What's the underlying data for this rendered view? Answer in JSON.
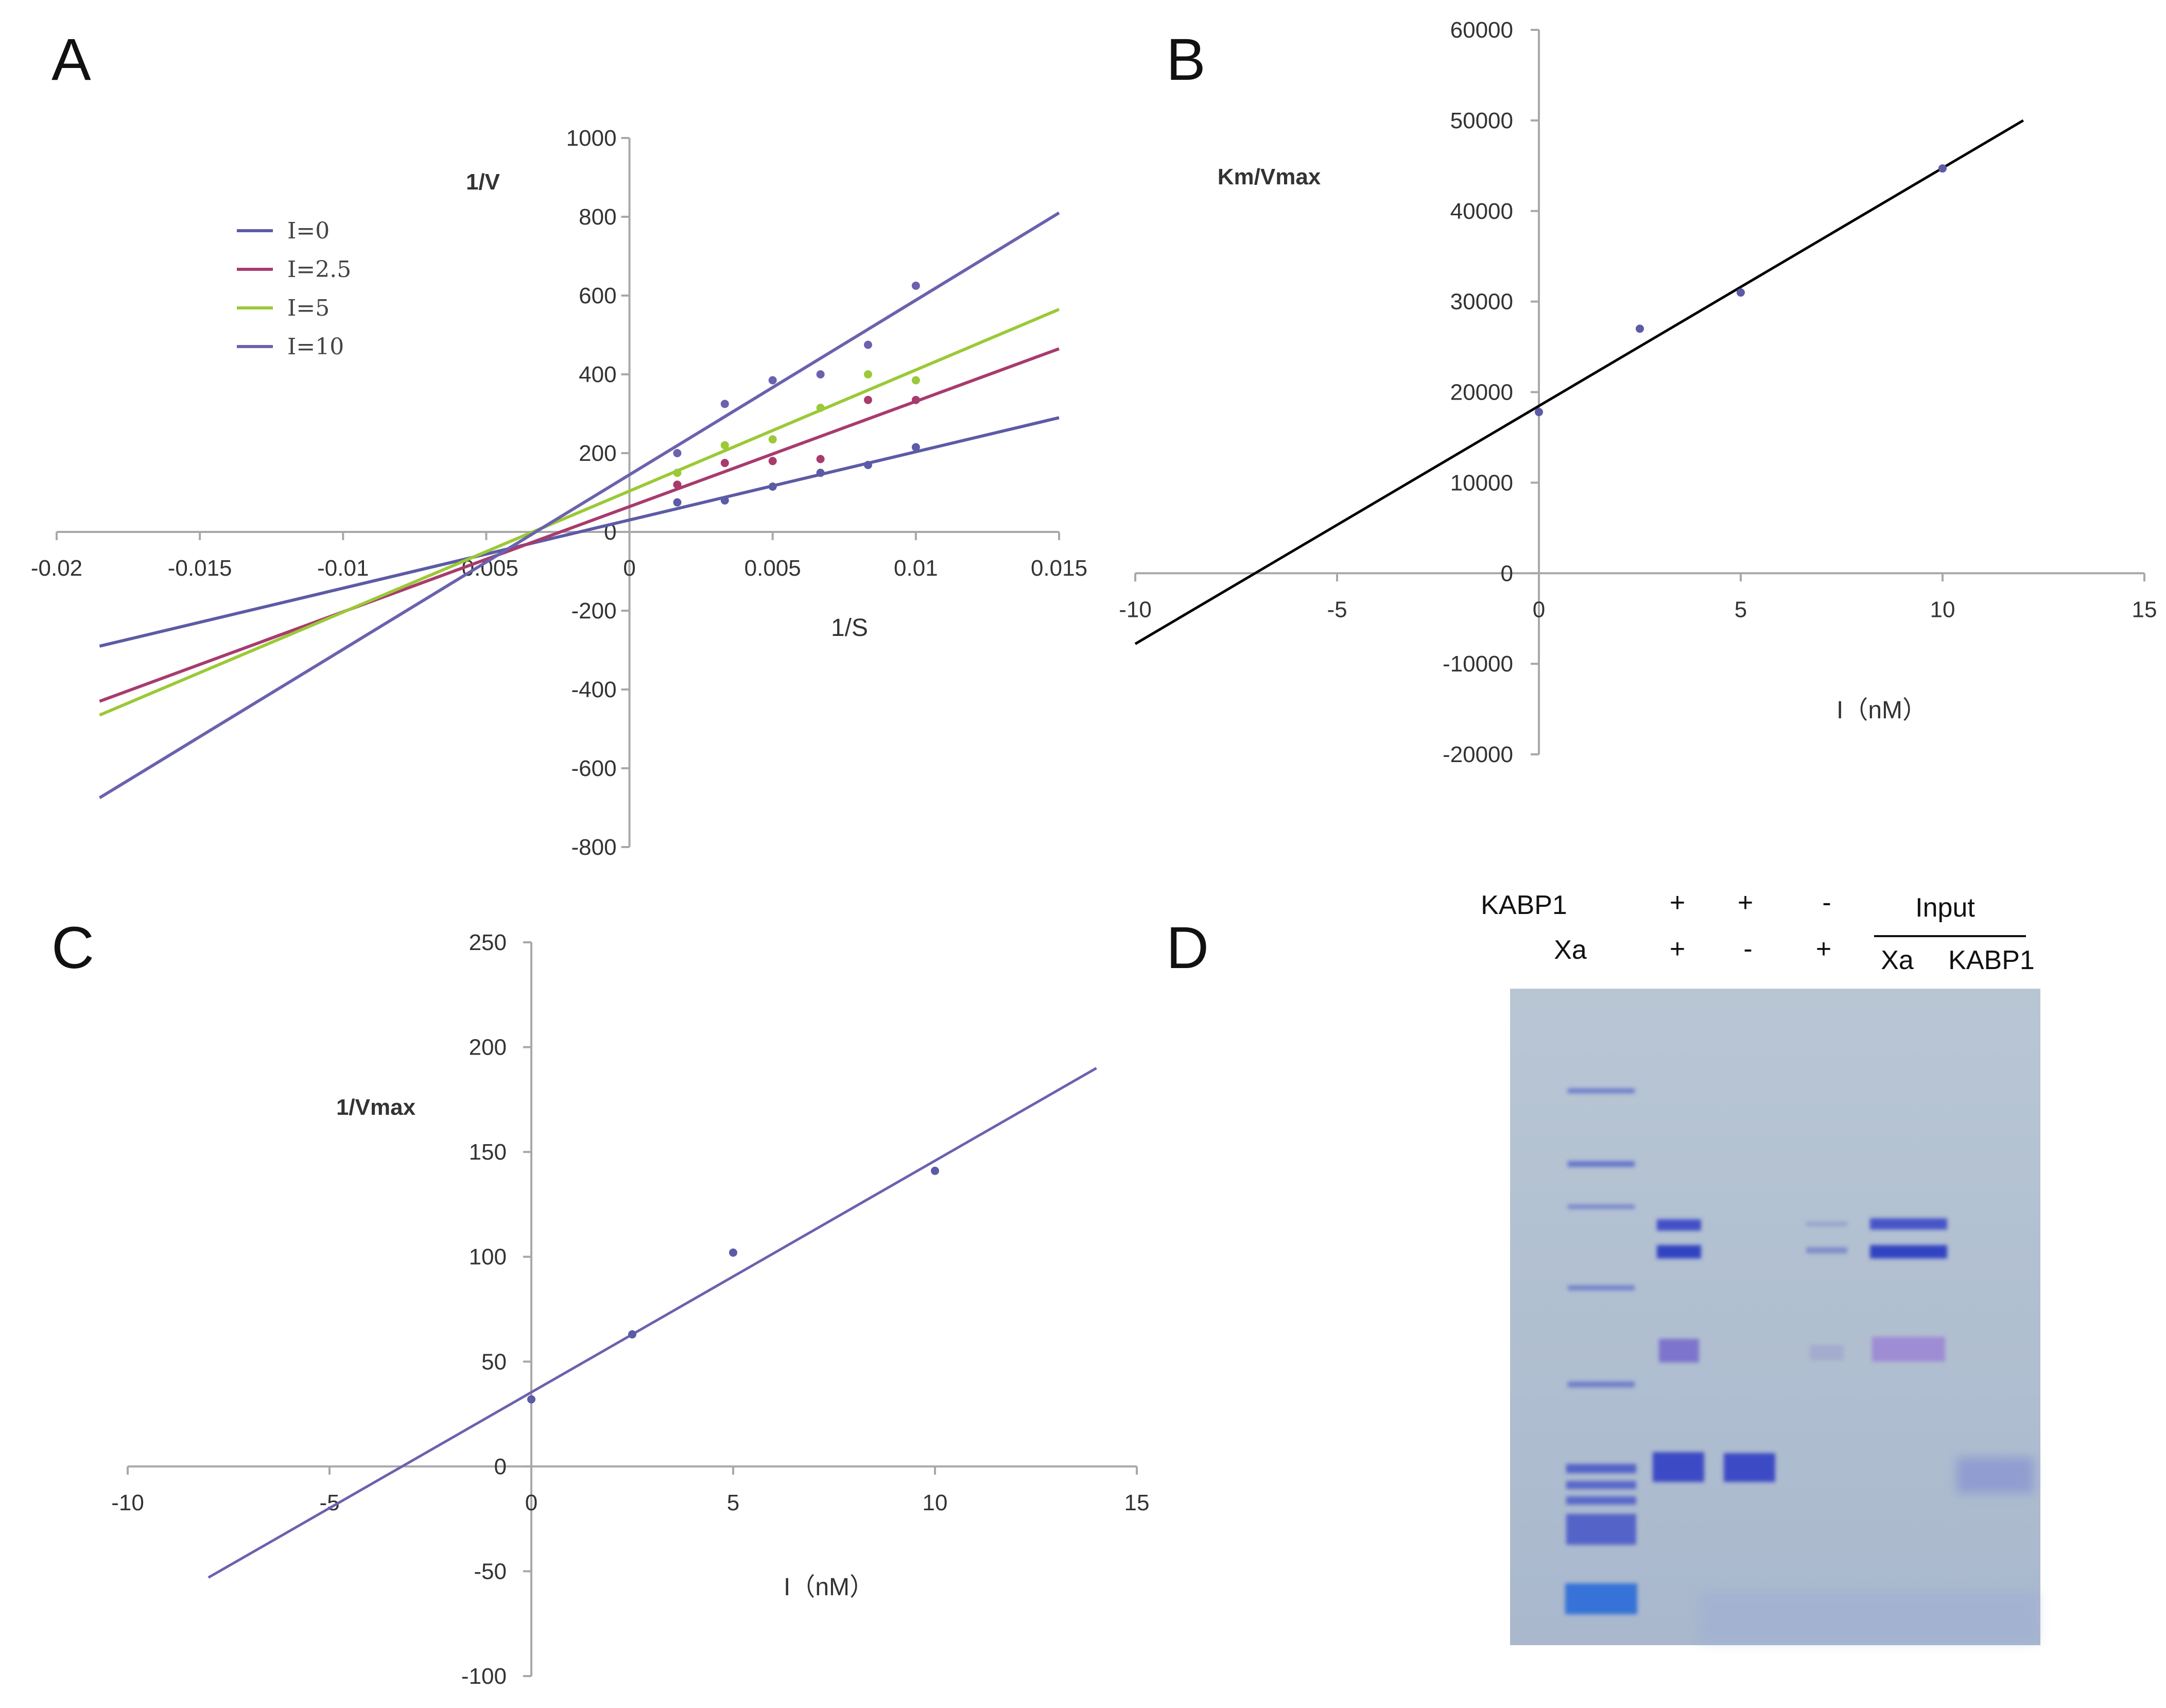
{
  "chart_data": [
    {
      "panel": "A",
      "type": "scatter",
      "title": "",
      "xlabel": "1/S",
      "ylabel": "1/V",
      "xlim": [
        -0.02,
        0.015
      ],
      "ylim": [
        -800,
        1000
      ],
      "x_ticks": [
        "-0.02",
        "-0.015",
        "-0.01",
        "-0.005",
        "0",
        "0.005",
        "0.01",
        "0.015"
      ],
      "x_tick_values": [
        -0.02,
        -0.015,
        -0.01,
        -0.005,
        0,
        0.005,
        0.01,
        0.015
      ],
      "y_ticks": [
        "1000",
        "800",
        "600",
        "400",
        "200",
        "0",
        "-200",
        "-400",
        "-600",
        "-800"
      ],
      "y_tick_values": [
        1000,
        800,
        600,
        400,
        200,
        0,
        -200,
        -400,
        -600,
        -800
      ],
      "legend_placement": "upper-left",
      "series": [
        {
          "name": "I=0",
          "color": "#5b5ba6",
          "points": [
            [
              0.00167,
              75
            ],
            [
              0.00333,
              80
            ],
            [
              0.005,
              115
            ],
            [
              0.00667,
              150
            ],
            [
              0.00833,
              170
            ],
            [
              0.01,
              215
            ]
          ],
          "fit": {
            "x": [
              -0.0185,
              0.015
            ],
            "y": [
              -290,
              290
            ]
          }
        },
        {
          "name": "I=2.5",
          "color": "#a83b6e",
          "points": [
            [
              0.00167,
              120
            ],
            [
              0.00333,
              175
            ],
            [
              0.005,
              180
            ],
            [
              0.00667,
              185
            ],
            [
              0.00833,
              335
            ],
            [
              0.01,
              335
            ]
          ],
          "fit": {
            "x": [
              -0.0185,
              0.015
            ],
            "y": [
              -430,
              465
            ]
          }
        },
        {
          "name": "I=5",
          "color": "#9bc937",
          "points": [
            [
              0.00167,
              150
            ],
            [
              0.00333,
              220
            ],
            [
              0.005,
              235
            ],
            [
              0.00667,
              315
            ],
            [
              0.00833,
              400
            ],
            [
              0.01,
              385
            ]
          ],
          "fit": {
            "x": [
              -0.0185,
              0.015
            ],
            "y": [
              -465,
              565
            ]
          }
        },
        {
          "name": "I=10",
          "color": "#6a62ae",
          "points": [
            [
              0.00167,
              200
            ],
            [
              0.00333,
              325
            ],
            [
              0.005,
              385
            ],
            [
              0.00667,
              400
            ],
            [
              0.00833,
              475
            ],
            [
              0.01,
              625
            ]
          ],
          "fit": {
            "x": [
              -0.0185,
              0.015
            ],
            "y": [
              -675,
              810
            ]
          }
        }
      ]
    },
    {
      "panel": "B",
      "type": "scatter",
      "title": "",
      "xlabel": "I（nM）",
      "ylabel": "Km/Vmax",
      "xlim": [
        -10,
        15
      ],
      "ylim": [
        -20000,
        60000
      ],
      "x_ticks": [
        "-10",
        "-5",
        "0",
        "5",
        "10",
        "15"
      ],
      "x_tick_values": [
        -10,
        -5,
        0,
        5,
        10,
        15
      ],
      "y_ticks": [
        "60000",
        "50000",
        "40000",
        "30000",
        "20000",
        "10000",
        "0",
        "-10000",
        "-20000"
      ],
      "y_tick_values": [
        60000,
        50000,
        40000,
        30000,
        20000,
        10000,
        0,
        -10000,
        -20000
      ],
      "series": [
        {
          "name": "Km/Vmax",
          "color": "#5b5ba6",
          "points": [
            [
              0,
              17800
            ],
            [
              2.5,
              27000
            ],
            [
              5,
              31000
            ],
            [
              10,
              44700
            ]
          ],
          "fit": {
            "x": [
              -10,
              12
            ],
            "y": [
              -7800,
              50000
            ],
            "color": "#000000"
          }
        }
      ]
    },
    {
      "panel": "C",
      "type": "scatter",
      "title": "",
      "xlabel": "I（nM）",
      "ylabel": "1/Vmax",
      "xlim": [
        -10,
        15
      ],
      "ylim": [
        -100,
        250
      ],
      "x_ticks": [
        "-10",
        "-5",
        "0",
        "5",
        "10",
        "15"
      ],
      "x_tick_values": [
        -10,
        -5,
        0,
        5,
        10,
        15
      ],
      "y_ticks": [
        "250",
        "200",
        "150",
        "100",
        "50",
        "0",
        "-50",
        "-100"
      ],
      "y_tick_values": [
        250,
        200,
        150,
        100,
        50,
        0,
        -50,
        -100
      ],
      "series": [
        {
          "name": "1/Vmax",
          "color": "#5b5ba6",
          "points": [
            [
              0,
              32
            ],
            [
              2.5,
              63
            ],
            [
              5,
              102
            ],
            [
              10,
              141
            ]
          ],
          "fit": {
            "x": [
              -8,
              14
            ],
            "y": [
              -53,
              190
            ],
            "color": "#6a62ae"
          }
        }
      ]
    }
  ],
  "panel_letters": {
    "a": "A",
    "b": "B",
    "c": "C",
    "d": "D"
  },
  "gel": {
    "row1_label": "KABP1",
    "row2_label": "Xa",
    "row1_signs": [
      "+",
      "+",
      "-"
    ],
    "row2_signs": [
      "+",
      "-",
      "+"
    ],
    "input_label": "Input",
    "input_lanes": [
      "Xa",
      "KABP1"
    ],
    "colors": {
      "background": "#b5c4d3",
      "band": "#3f4fc2"
    }
  }
}
